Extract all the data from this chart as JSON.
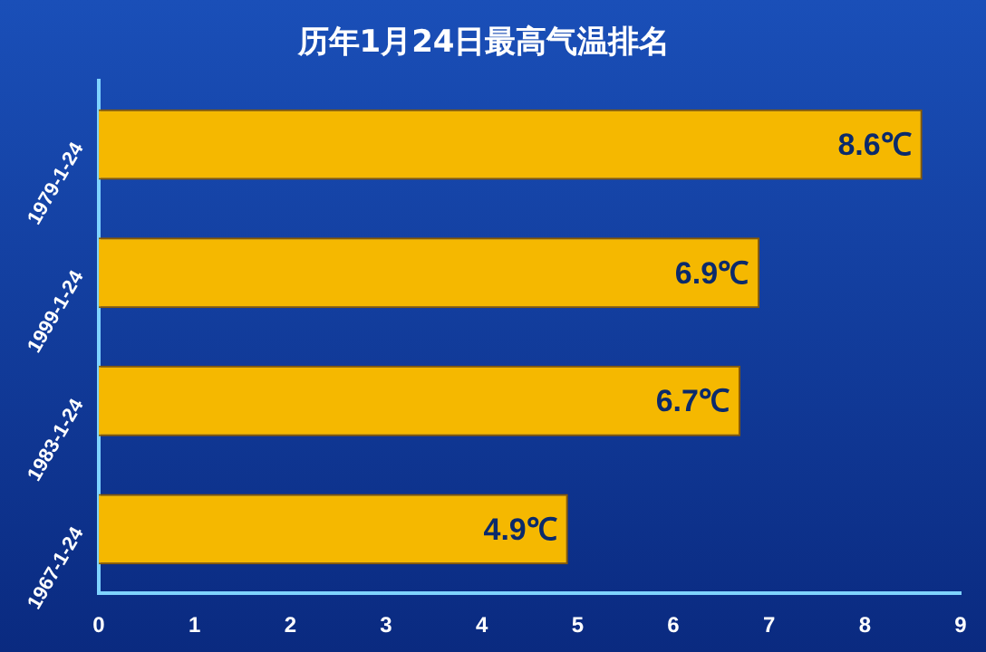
{
  "chart_data": {
    "type": "bar",
    "orientation": "horizontal",
    "title": "历年1月24日最高气温排名",
    "categories": [
      "1979-1-24",
      "1999-1-24",
      "1983-1-24",
      "1967-1-24"
    ],
    "values": [
      8.6,
      6.9,
      6.7,
      4.9
    ],
    "value_labels": [
      "8.6℃",
      "6.9℃",
      "6.7℃",
      "4.9℃"
    ],
    "color": "#f5b800",
    "xlim": [
      0,
      9
    ],
    "xticks": [
      0,
      1,
      2,
      3,
      4,
      5,
      6,
      7,
      8,
      9
    ],
    "grid": false
  }
}
